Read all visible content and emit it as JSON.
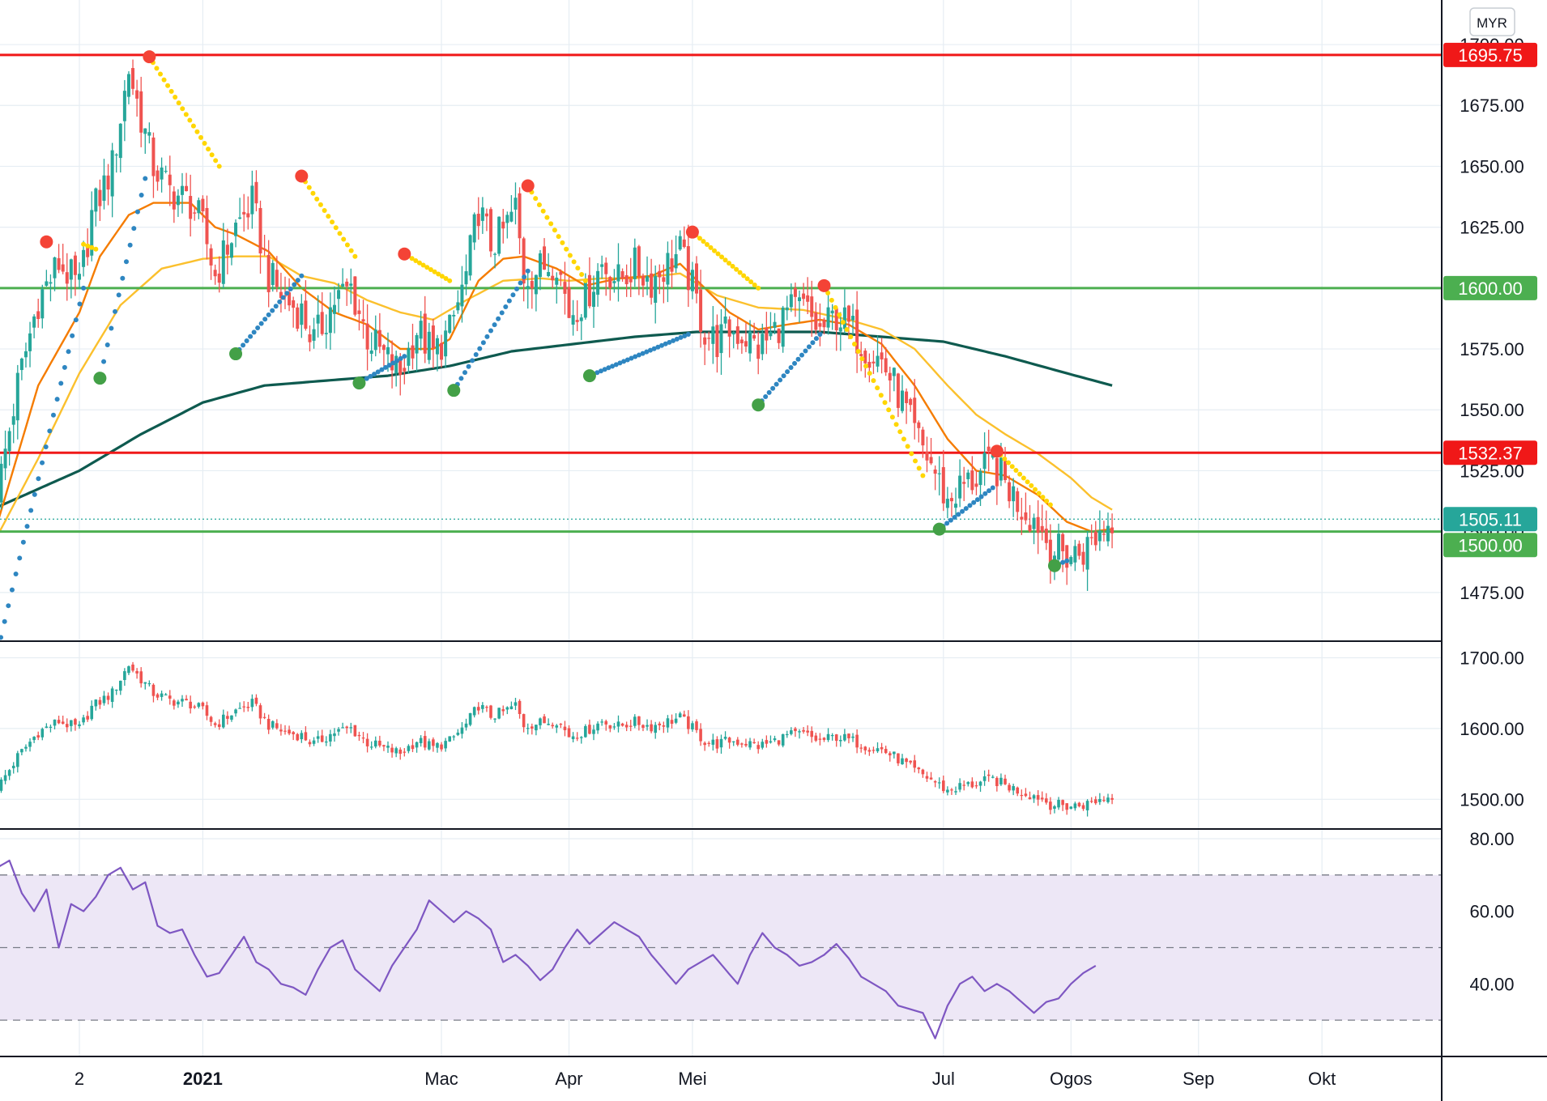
{
  "currency_badge": "MYR",
  "colors": {
    "up": "#26a69a",
    "down": "#ef5350",
    "ema_fast": "#f57c00",
    "ema_slow": "#fbc02d",
    "ema_long": "#0e5a4f",
    "sar_up": "#2e86c1",
    "sar_down": "#ffd600",
    "resistance": "#f01818",
    "support": "#4caf50",
    "last_price": "#26a69a",
    "rsi_line": "#7e57c2",
    "rsi_band": "#ede7f6",
    "grid": "#e6edf3",
    "text": "#131722"
  },
  "x_axis": {
    "labels": [
      {
        "text": "2",
        "day": 0
      },
      {
        "text": "2021",
        "day": 30
      },
      {
        "text": "Mac",
        "day": 88
      },
      {
        "text": "Apr",
        "day": 119
      },
      {
        "text": "Mei",
        "day": 149
      },
      {
        "text": "Jul",
        "day": 210
      },
      {
        "text": "Ogos",
        "day": 241
      },
      {
        "text": "Sep",
        "day": 272
      },
      {
        "text": "Okt",
        "day": 302
      }
    ]
  },
  "chart_data": [
    {
      "type": "candlestick",
      "panel": "main",
      "ylim": [
        1455,
        1705
      ],
      "y_ticks": [
        1475,
        1500,
        1525,
        1550,
        1575,
        1600,
        1625,
        1650,
        1675,
        1700
      ],
      "y_tick_labels": [
        "1475.00",
        "1500.00",
        "1525.00",
        "1550.00",
        "1575.00",
        "1600.00",
        "1625.00",
        "1650.00",
        "1675.00",
        "1700.00"
      ],
      "horizontal_levels": [
        {
          "value": 1695.75,
          "label": "1695.75",
          "kind": "resistance"
        },
        {
          "value": 1600.0,
          "label": "1600.00",
          "kind": "support"
        },
        {
          "value": 1532.37,
          "label": "1532.37",
          "kind": "resistance"
        },
        {
          "value": 1505.11,
          "label": "1505.11",
          "kind": "last_price"
        },
        {
          "value": 1500.0,
          "label": "1500.00",
          "kind": "support"
        }
      ],
      "close_anchors": [
        [
          -20,
          1515
        ],
        [
          -15,
          1560
        ],
        [
          -10,
          1595
        ],
        [
          -5,
          1610
        ],
        [
          0,
          1600
        ],
        [
          3,
          1630
        ],
        [
          8,
          1650
        ],
        [
          12,
          1690
        ],
        [
          15,
          1670
        ],
        [
          18,
          1650
        ],
        [
          22,
          1640
        ],
        [
          27,
          1635
        ],
        [
          30,
          1625
        ],
        [
          33,
          1605
        ],
        [
          38,
          1625
        ],
        [
          42,
          1635
        ],
        [
          46,
          1605
        ],
        [
          50,
          1595
        ],
        [
          54,
          1590
        ],
        [
          57,
          1578
        ],
        [
          62,
          1595
        ],
        [
          66,
          1600
        ],
        [
          70,
          1580
        ],
        [
          74,
          1572
        ],
        [
          78,
          1565
        ],
        [
          82,
          1583
        ],
        [
          86,
          1573
        ],
        [
          90,
          1582
        ],
        [
          94,
          1605
        ],
        [
          97,
          1633
        ],
        [
          100,
          1618
        ],
        [
          103,
          1623
        ],
        [
          106,
          1633
        ],
        [
          108,
          1605
        ],
        [
          112,
          1608
        ],
        [
          116,
          1612
        ],
        [
          119,
          1590
        ],
        [
          123,
          1596
        ],
        [
          127,
          1610
        ],
        [
          131,
          1603
        ],
        [
          135,
          1609
        ],
        [
          139,
          1603
        ],
        [
          143,
          1610
        ],
        [
          146,
          1615
        ],
        [
          149,
          1600
        ],
        [
          152,
          1582
        ],
        [
          155,
          1578
        ],
        [
          158,
          1583
        ],
        [
          162,
          1580
        ],
        [
          165,
          1575
        ],
        [
          168,
          1580
        ],
        [
          172,
          1590
        ],
        [
          176,
          1592
        ],
        [
          180,
          1582
        ],
        [
          184,
          1589
        ],
        [
          187,
          1584
        ],
        [
          191,
          1576
        ],
        [
          195,
          1570
        ],
        [
          199,
          1557
        ],
        [
          203,
          1540
        ],
        [
          207,
          1528
        ],
        [
          211,
          1512
        ],
        [
          214,
          1518
        ],
        [
          218,
          1522
        ],
        [
          222,
          1528
        ],
        [
          225,
          1520
        ],
        [
          229,
          1510
        ],
        [
          233,
          1504
        ],
        [
          236,
          1493
        ],
        [
          240,
          1490
        ],
        [
          244,
          1492
        ],
        [
          248,
          1500
        ],
        [
          251,
          1505
        ]
      ],
      "ema_9": [
        [
          -20,
          1503
        ],
        [
          -10,
          1560
        ],
        [
          0,
          1590
        ],
        [
          5,
          1613
        ],
        [
          12,
          1630
        ],
        [
          18,
          1635
        ],
        [
          27,
          1635
        ],
        [
          33,
          1625
        ],
        [
          38,
          1622
        ],
        [
          46,
          1615
        ],
        [
          54,
          1600
        ],
        [
          62,
          1590
        ],
        [
          70,
          1585
        ],
        [
          78,
          1575
        ],
        [
          86,
          1575
        ],
        [
          90,
          1579
        ],
        [
          97,
          1603
        ],
        [
          103,
          1612
        ],
        [
          108,
          1613
        ],
        [
          116,
          1608
        ],
        [
          123,
          1601
        ],
        [
          131,
          1604
        ],
        [
          139,
          1605
        ],
        [
          146,
          1610
        ],
        [
          152,
          1600
        ],
        [
          158,
          1590
        ],
        [
          165,
          1583
        ],
        [
          172,
          1585
        ],
        [
          180,
          1587
        ],
        [
          187,
          1585
        ],
        [
          195,
          1577
        ],
        [
          203,
          1560
        ],
        [
          211,
          1538
        ],
        [
          218,
          1525
        ],
        [
          225,
          1523
        ],
        [
          233,
          1515
        ],
        [
          240,
          1504
        ],
        [
          246,
          1500
        ],
        [
          251,
          1501
        ]
      ],
      "ema_21": [
        [
          -20,
          1498
        ],
        [
          -10,
          1530
        ],
        [
          0,
          1565
        ],
        [
          10,
          1593
        ],
        [
          20,
          1608
        ],
        [
          30,
          1612
        ],
        [
          38,
          1613
        ],
        [
          46,
          1613
        ],
        [
          54,
          1605
        ],
        [
          62,
          1602
        ],
        [
          70,
          1595
        ],
        [
          78,
          1590
        ],
        [
          86,
          1587
        ],
        [
          94,
          1595
        ],
        [
          103,
          1603
        ],
        [
          112,
          1604
        ],
        [
          119,
          1603
        ],
        [
          127,
          1604
        ],
        [
          135,
          1604
        ],
        [
          146,
          1606
        ],
        [
          155,
          1597
        ],
        [
          165,
          1592
        ],
        [
          176,
          1591
        ],
        [
          187,
          1587
        ],
        [
          195,
          1583
        ],
        [
          203,
          1575
        ],
        [
          211,
          1560
        ],
        [
          218,
          1548
        ],
        [
          225,
          1540
        ],
        [
          233,
          1532
        ],
        [
          241,
          1522
        ],
        [
          246,
          1514
        ],
        [
          251,
          1509
        ]
      ],
      "ema_200": [
        [
          -20,
          1510
        ],
        [
          0,
          1525
        ],
        [
          15,
          1540
        ],
        [
          30,
          1553
        ],
        [
          45,
          1560
        ],
        [
          60,
          1562
        ],
        [
          75,
          1564
        ],
        [
          90,
          1568
        ],
        [
          105,
          1574
        ],
        [
          120,
          1577
        ],
        [
          135,
          1580
        ],
        [
          150,
          1582
        ],
        [
          165,
          1582
        ],
        [
          180,
          1582
        ],
        [
          195,
          1580
        ],
        [
          210,
          1578
        ],
        [
          225,
          1572
        ],
        [
          240,
          1565
        ],
        [
          251,
          1560
        ]
      ],
      "sar_segments": [
        {
          "trend": "up",
          "start": [
            -20,
            1450
          ],
          "end": [
            1,
            1600
          ],
          "big_dot": null
        },
        {
          "trend": "down",
          "start": [
            1,
            1618
          ],
          "end": [
            4,
            1616
          ],
          "big_dot": [
            -8,
            1619
          ]
        },
        {
          "trend": "up",
          "start": [
            5,
            1563
          ],
          "end": [
            16,
            1645
          ],
          "big_dot": [
            5,
            1563
          ]
        },
        {
          "trend": "down",
          "start": [
            17,
            1695
          ],
          "end": [
            34,
            1650
          ],
          "big_dot": [
            17,
            1695
          ]
        },
        {
          "trend": "up",
          "start": [
            38,
            1573
          ],
          "end": [
            54,
            1605
          ],
          "big_dot": [
            38,
            1573
          ]
        },
        {
          "trend": "down",
          "start": [
            54,
            1646
          ],
          "end": [
            67,
            1613
          ],
          "big_dot": [
            54,
            1646
          ]
        },
        {
          "trend": "up",
          "start": [
            68,
            1561
          ],
          "end": [
            79,
            1572
          ],
          "big_dot": [
            68,
            1561
          ]
        },
        {
          "trend": "down",
          "start": [
            79,
            1614
          ],
          "end": [
            90,
            1603
          ],
          "big_dot": [
            79,
            1614
          ]
        },
        {
          "trend": "up",
          "start": [
            91,
            1558
          ],
          "end": [
            109,
            1607
          ],
          "big_dot": [
            91,
            1558
          ]
        },
        {
          "trend": "down",
          "start": [
            109,
            1642
          ],
          "end": [
            123,
            1603
          ],
          "big_dot": [
            109,
            1642
          ]
        },
        {
          "trend": "up",
          "start": [
            124,
            1564
          ],
          "end": [
            148,
            1581
          ],
          "big_dot": [
            124,
            1564
          ]
        },
        {
          "trend": "down",
          "start": [
            149,
            1623
          ],
          "end": [
            165,
            1600
          ],
          "big_dot": [
            149,
            1623
          ]
        },
        {
          "trend": "up",
          "start": [
            165,
            1552
          ],
          "end": [
            180,
            1581
          ],
          "big_dot": [
            165,
            1552
          ]
        },
        {
          "trend": "down",
          "start": [
            181,
            1601
          ],
          "end": [
            205,
            1523
          ],
          "big_dot": [
            181,
            1601
          ]
        },
        {
          "trend": "up",
          "start": [
            209,
            1501
          ],
          "end": [
            222,
            1518
          ],
          "big_dot": [
            209,
            1501
          ]
        },
        {
          "trend": "down",
          "start": [
            223,
            1533
          ],
          "end": [
            236,
            1511
          ],
          "big_dot": [
            223,
            1533
          ]
        },
        {
          "trend": "up",
          "start": [
            237,
            1486
          ],
          "end": [
            240,
            1488
          ],
          "big_dot": [
            237,
            1486
          ]
        }
      ]
    },
    {
      "type": "candlestick",
      "panel": "secondary",
      "ylim": [
        1458,
        1720
      ],
      "y_ticks": [
        1500,
        1600,
        1700
      ],
      "y_tick_labels": [
        "1500.00",
        "1600.00",
        "1700.00"
      ]
    },
    {
      "type": "line",
      "panel": "rsi",
      "ylim": [
        20,
        82
      ],
      "y_ticks": [
        40,
        60,
        80
      ],
      "y_tick_labels": [
        "40.00",
        "60.00",
        "80.00"
      ],
      "band": [
        30,
        70
      ],
      "dashed_levels": [
        30,
        50,
        70
      ],
      "rsi_anchors": [
        [
          -20,
          72
        ],
        [
          -17,
          74
        ],
        [
          -14,
          65
        ],
        [
          -11,
          60
        ],
        [
          -8,
          66
        ],
        [
          -5,
          50
        ],
        [
          -2,
          62
        ],
        [
          1,
          60
        ],
        [
          4,
          64
        ],
        [
          7,
          70
        ],
        [
          10,
          72
        ],
        [
          13,
          66
        ],
        [
          16,
          68
        ],
        [
          19,
          56
        ],
        [
          22,
          54
        ],
        [
          25,
          55
        ],
        [
          28,
          48
        ],
        [
          31,
          42
        ],
        [
          34,
          43
        ],
        [
          37,
          48
        ],
        [
          40,
          53
        ],
        [
          43,
          46
        ],
        [
          46,
          44
        ],
        [
          49,
          40
        ],
        [
          52,
          39
        ],
        [
          55,
          37
        ],
        [
          58,
          44
        ],
        [
          61,
          50
        ],
        [
          64,
          52
        ],
        [
          67,
          44
        ],
        [
          70,
          41
        ],
        [
          73,
          38
        ],
        [
          76,
          45
        ],
        [
          79,
          50
        ],
        [
          82,
          55
        ],
        [
          85,
          63
        ],
        [
          88,
          60
        ],
        [
          91,
          57
        ],
        [
          94,
          60
        ],
        [
          97,
          58
        ],
        [
          100,
          55
        ],
        [
          103,
          46
        ],
        [
          106,
          48
        ],
        [
          109,
          45
        ],
        [
          112,
          41
        ],
        [
          115,
          44
        ],
        [
          118,
          50
        ],
        [
          121,
          55
        ],
        [
          124,
          51
        ],
        [
          127,
          54
        ],
        [
          130,
          57
        ],
        [
          133,
          55
        ],
        [
          136,
          53
        ],
        [
          139,
          48
        ],
        [
          142,
          44
        ],
        [
          145,
          40
        ],
        [
          148,
          44
        ],
        [
          151,
          46
        ],
        [
          154,
          48
        ],
        [
          157,
          44
        ],
        [
          160,
          40
        ],
        [
          163,
          48
        ],
        [
          166,
          54
        ],
        [
          169,
          50
        ],
        [
          172,
          48
        ],
        [
          175,
          45
        ],
        [
          178,
          46
        ],
        [
          181,
          48
        ],
        [
          184,
          51
        ],
        [
          187,
          47
        ],
        [
          190,
          42
        ],
        [
          193,
          40
        ],
        [
          196,
          38
        ],
        [
          199,
          34
        ],
        [
          202,
          33
        ],
        [
          205,
          32
        ],
        [
          208,
          25
        ],
        [
          211,
          34
        ],
        [
          214,
          40
        ],
        [
          217,
          42
        ],
        [
          220,
          38
        ],
        [
          223,
          40
        ],
        [
          226,
          38
        ],
        [
          229,
          35
        ],
        [
          232,
          32
        ],
        [
          235,
          35
        ],
        [
          238,
          36
        ],
        [
          241,
          40
        ],
        [
          244,
          43
        ],
        [
          247,
          45
        ]
      ]
    }
  ]
}
